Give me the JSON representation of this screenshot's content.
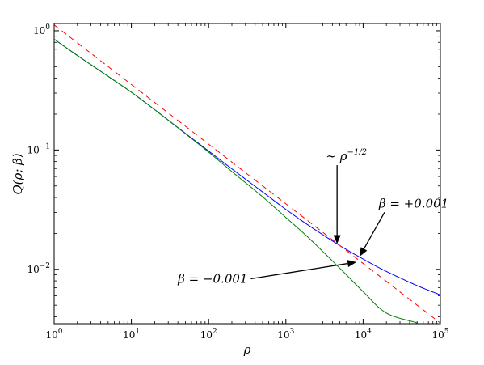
{
  "chart_data": {
    "type": "line",
    "xscale": "log",
    "yscale": "log",
    "xlim": [
      1,
      100000
    ],
    "ylim": [
      0.0035,
      1.15
    ],
    "grid": false,
    "xlabel": "ρ",
    "ylabel": "Q(ρ; β)",
    "x_ticks": [
      {
        "value": 1,
        "base": "10",
        "exp": "0"
      },
      {
        "value": 10,
        "base": "10",
        "exp": "1"
      },
      {
        "value": 100,
        "base": "10",
        "exp": "2"
      },
      {
        "value": 1000,
        "base": "10",
        "exp": "3"
      },
      {
        "value": 10000,
        "base": "10",
        "exp": "4"
      },
      {
        "value": 100000,
        "base": "10",
        "exp": "5"
      }
    ],
    "y_ticks": [
      {
        "value": 0.01,
        "base": "10",
        "exp": "−2"
      },
      {
        "value": 0.1,
        "base": "10",
        "exp": "−1"
      },
      {
        "value": 1,
        "base": "10",
        "exp": "0"
      }
    ],
    "series": [
      {
        "color": "#0000ff",
        "dash": "solid",
        "x": [
          1,
          2,
          5,
          10,
          20,
          50,
          100,
          200,
          500,
          1000,
          2000,
          5000,
          10000,
          20000,
          50000,
          100000
        ],
        "y": [
          0.85,
          0.62,
          0.415,
          0.305,
          0.218,
          0.138,
          0.098,
          0.0695,
          0.0445,
          0.0318,
          0.0232,
          0.0158,
          0.0122,
          0.0096,
          0.0073,
          0.0061
        ]
      },
      {
        "color": "#ff0000",
        "dash": "dashed",
        "x": [
          1,
          100000
        ],
        "y": [
          1.12,
          0.00354
        ]
      },
      {
        "color": "#008000",
        "dash": "solid",
        "x": [
          1,
          2,
          5,
          10,
          20,
          50,
          100,
          200,
          500,
          1000,
          2000,
          5000,
          10000,
          20000,
          50000
        ],
        "y": [
          0.85,
          0.62,
          0.415,
          0.305,
          0.218,
          0.137,
          0.096,
          0.066,
          0.0405,
          0.0272,
          0.0182,
          0.0102,
          0.0065,
          0.0043,
          0.00355
        ]
      }
    ],
    "annotations": [
      {
        "text_main": "∼ ρ",
        "text_sup": "−1/2",
        "text_x": 3300,
        "text_y": 0.082,
        "arrow_x": 4600,
        "arrow_y": 0.0163
      },
      {
        "text_main": "β = +0.001",
        "text_sup": "",
        "text_x": 16000,
        "text_y": 0.033,
        "arrow_x": 9000,
        "arrow_y": 0.0128
      },
      {
        "text_main": "β = −0.001",
        "text_sup": "",
        "text_x": 40,
        "text_y": 0.0077,
        "arrow_x": 8200,
        "arrow_y": 0.0115
      }
    ]
  }
}
